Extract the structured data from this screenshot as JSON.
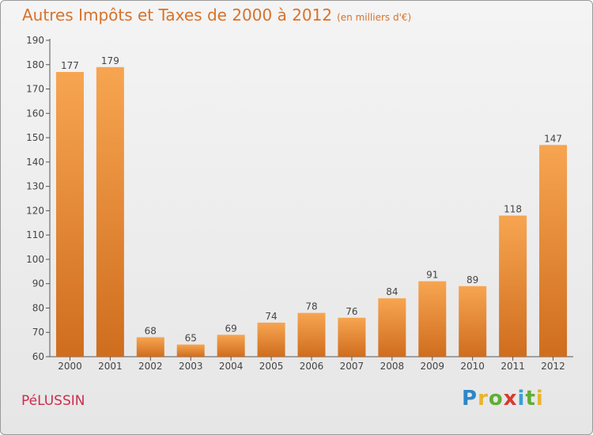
{
  "title": "Autres Impôts et Taxes de 2000 à 2012",
  "subtitle": "(en milliers d'€)",
  "commune": "PéLUSSIN",
  "logo": "Proxiti",
  "colors": {
    "bar_light": "#f7a551",
    "bar_dark": "#cf6d1e",
    "title": "#d8722a",
    "commune": "#cc2c4c"
  },
  "chart_data": {
    "type": "bar",
    "title": "Autres Impôts et Taxes de 2000 à 2012",
    "subtitle": "(en milliers d'€)",
    "categories": [
      "2000",
      "2001",
      "2002",
      "2003",
      "2004",
      "2005",
      "2006",
      "2007",
      "2008",
      "2009",
      "2010",
      "2011",
      "2012"
    ],
    "values": [
      177,
      179,
      68,
      65,
      69,
      74,
      78,
      76,
      84,
      91,
      89,
      118,
      147
    ],
    "data_labels": [
      "177",
      "179",
      "68",
      "65",
      "69",
      "74",
      "78",
      "76",
      "84",
      "91",
      "89",
      "118",
      "147"
    ],
    "ylim": [
      60,
      190
    ],
    "yticks": [
      60,
      70,
      80,
      90,
      100,
      110,
      120,
      130,
      140,
      150,
      160,
      170,
      180,
      190
    ],
    "grid": false,
    "xlabel": "",
    "ylabel": ""
  }
}
